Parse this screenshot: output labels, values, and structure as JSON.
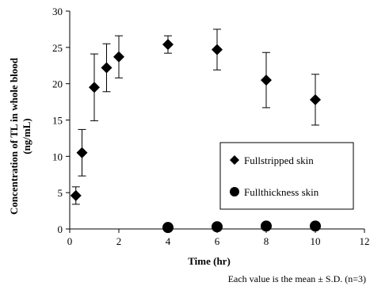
{
  "chart_data": {
    "type": "scatter",
    "title": "",
    "xlabel": "Time (hr)",
    "ylabel_line1": "Concentration of TL in whole blood",
    "ylabel_line2": "(ng/mL)",
    "xlim": [
      0,
      12
    ],
    "ylim": [
      0,
      30
    ],
    "xticks": [
      0,
      2,
      4,
      6,
      8,
      10,
      12
    ],
    "yticks": [
      0,
      5,
      10,
      15,
      20,
      25,
      30
    ],
    "grid": false,
    "legend_position": "bottom-right",
    "series": [
      {
        "name": "Fullstripped skin",
        "marker": "diamond",
        "color": "#000000",
        "points": [
          {
            "x": 0.25,
            "y": 4.6,
            "sd": 1.2
          },
          {
            "x": 0.5,
            "y": 10.5,
            "sd": 3.2
          },
          {
            "x": 1,
            "y": 19.5,
            "sd": 4.6
          },
          {
            "x": 1.5,
            "y": 22.2,
            "sd": 3.3
          },
          {
            "x": 2,
            "y": 23.7,
            "sd": 2.9
          },
          {
            "x": 4,
            "y": 25.4,
            "sd": 1.2
          },
          {
            "x": 6,
            "y": 24.7,
            "sd": 2.8
          },
          {
            "x": 8,
            "y": 20.5,
            "sd": 3.8
          },
          {
            "x": 10,
            "y": 17.8,
            "sd": 3.5
          }
        ]
      },
      {
        "name": "Fullthickness skin",
        "marker": "circle",
        "color": "#000000",
        "points": [
          {
            "x": 4,
            "y": 0.2,
            "sd": 0
          },
          {
            "x": 6,
            "y": 0.3,
            "sd": 0
          },
          {
            "x": 8,
            "y": 0.4,
            "sd": 0
          },
          {
            "x": 10,
            "y": 0.4,
            "sd": 0
          }
        ]
      }
    ],
    "footnote": "Each value is the mean ± S.D.  (n=3)"
  }
}
